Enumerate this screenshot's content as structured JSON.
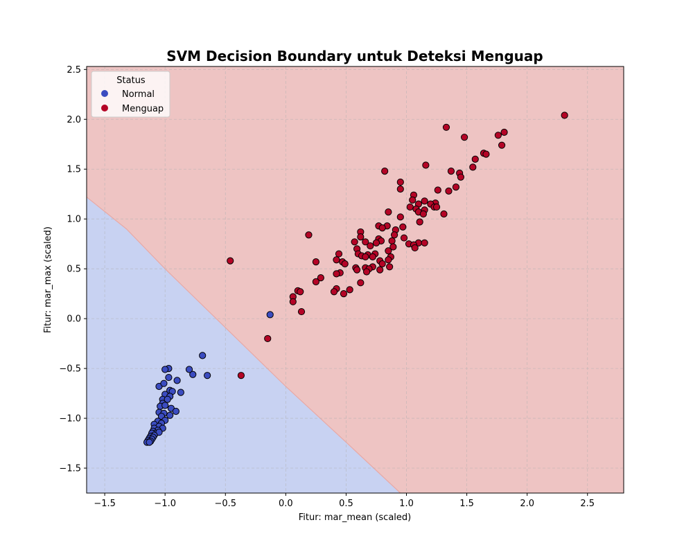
{
  "chart_data": {
    "type": "scatter",
    "title": "SVM Decision Boundary untuk Deteksi Menguap",
    "xlabel": "Fitur: mar_mean (scaled)",
    "ylabel": "Fitur: mar_max (scaled)",
    "xlim": [
      -1.65,
      2.8
    ],
    "ylim": [
      -1.75,
      2.53
    ],
    "xticks": [
      -1.5,
      -1.0,
      -0.5,
      0.0,
      0.5,
      1.0,
      1.5,
      2.0,
      2.5
    ],
    "yticks": [
      -1.5,
      -1.0,
      -0.5,
      0.0,
      0.5,
      1.0,
      1.5,
      2.0,
      2.5
    ],
    "xtick_labels": [
      "−1.5",
      "−1.0",
      "−0.5",
      "0.0",
      "0.5",
      "1.0",
      "1.5",
      "2.0",
      "2.5"
    ],
    "ytick_labels": [
      "−1.5",
      "−1.0",
      "−0.5",
      "0.0",
      "0.5",
      "1.0",
      "1.5",
      "2.0",
      "2.5"
    ],
    "grid": true,
    "legend": {
      "title": "Status",
      "position": "upper-left"
    },
    "decision_boundary": {
      "points": [
        [
          -1.65,
          1.22
        ],
        [
          -1.32,
          0.9
        ],
        [
          -1.0,
          0.5
        ],
        [
          -0.5,
          -0.09
        ],
        [
          0.0,
          -0.68
        ],
        [
          0.5,
          -1.24
        ],
        [
          0.95,
          -1.75
        ]
      ],
      "region_colors": {
        "normal": "#c8d2f2",
        "menguap": "#eec4c3"
      }
    },
    "series": [
      {
        "name": "Normal",
        "color": "#3b4cc0",
        "points": [
          [
            -0.13,
            0.04
          ],
          [
            -0.69,
            -0.37
          ],
          [
            -0.65,
            -0.57
          ],
          [
            -0.77,
            -0.56
          ],
          [
            -0.8,
            -0.51
          ],
          [
            -0.97,
            -0.5
          ],
          [
            -1.0,
            -0.51
          ],
          [
            -0.97,
            -0.59
          ],
          [
            -0.9,
            -0.62
          ],
          [
            -1.05,
            -0.68
          ],
          [
            -1.01,
            -0.65
          ],
          [
            -0.96,
            -0.72
          ],
          [
            -0.94,
            -0.73
          ],
          [
            -0.87,
            -0.74
          ],
          [
            -1.0,
            -0.76
          ],
          [
            -0.96,
            -0.78
          ],
          [
            -1.02,
            -0.81
          ],
          [
            -0.98,
            -0.81
          ],
          [
            -1.02,
            -0.85
          ],
          [
            -1.04,
            -0.88
          ],
          [
            -1.0,
            -0.87
          ],
          [
            -0.95,
            -0.9
          ],
          [
            -0.91,
            -0.93
          ],
          [
            -1.05,
            -0.94
          ],
          [
            -1.01,
            -0.95
          ],
          [
            -0.96,
            -0.97
          ],
          [
            -1.03,
            -0.98
          ],
          [
            -1.0,
            -1.02
          ],
          [
            -1.06,
            -1.03
          ],
          [
            -1.03,
            -1.05
          ],
          [
            -1.09,
            -1.06
          ],
          [
            -1.05,
            -1.08
          ],
          [
            -1.02,
            -1.1
          ],
          [
            -1.09,
            -1.1
          ],
          [
            -1.06,
            -1.12
          ],
          [
            -1.1,
            -1.13
          ],
          [
            -1.08,
            -1.15
          ],
          [
            -1.11,
            -1.15
          ],
          [
            -1.05,
            -1.14
          ],
          [
            -1.09,
            -1.17
          ],
          [
            -1.12,
            -1.18
          ],
          [
            -1.1,
            -1.19
          ],
          [
            -1.13,
            -1.2
          ],
          [
            -1.11,
            -1.21
          ],
          [
            -1.14,
            -1.22
          ],
          [
            -1.12,
            -1.23
          ],
          [
            -1.15,
            -1.24
          ],
          [
            -1.13,
            -1.24
          ]
        ]
      },
      {
        "name": "Menguap",
        "color": "#b40426",
        "points": [
          [
            2.31,
            2.04
          ],
          [
            1.33,
            1.92
          ],
          [
            1.81,
            1.87
          ],
          [
            1.76,
            1.84
          ],
          [
            1.48,
            1.82
          ],
          [
            1.79,
            1.74
          ],
          [
            1.64,
            1.66
          ],
          [
            1.66,
            1.65
          ],
          [
            1.57,
            1.6
          ],
          [
            1.16,
            1.54
          ],
          [
            1.55,
            1.52
          ],
          [
            0.82,
            1.48
          ],
          [
            1.37,
            1.48
          ],
          [
            1.44,
            1.46
          ],
          [
            1.45,
            1.42
          ],
          [
            0.95,
            1.37
          ],
          [
            1.41,
            1.32
          ],
          [
            0.95,
            1.3
          ],
          [
            1.26,
            1.29
          ],
          [
            1.35,
            1.28
          ],
          [
            1.06,
            1.24
          ],
          [
            1.05,
            1.19
          ],
          [
            1.15,
            1.18
          ],
          [
            1.24,
            1.16
          ],
          [
            1.1,
            1.15
          ],
          [
            1.2,
            1.15
          ],
          [
            1.23,
            1.12
          ],
          [
            1.25,
            1.12
          ],
          [
            1.03,
            1.12
          ],
          [
            1.08,
            1.1
          ],
          [
            1.15,
            1.09
          ],
          [
            1.1,
            1.07
          ],
          [
            0.85,
            1.07
          ],
          [
            1.14,
            1.05
          ],
          [
            1.31,
            1.05
          ],
          [
            0.95,
            1.02
          ],
          [
            1.11,
            0.97
          ],
          [
            0.77,
            0.93
          ],
          [
            0.84,
            0.93
          ],
          [
            0.8,
            0.91
          ],
          [
            0.97,
            0.92
          ],
          [
            0.91,
            0.89
          ],
          [
            0.62,
            0.87
          ],
          [
            0.19,
            0.84
          ],
          [
            0.9,
            0.84
          ],
          [
            0.62,
            0.82
          ],
          [
            0.77,
            0.8
          ],
          [
            0.98,
            0.81
          ],
          [
            0.88,
            0.78
          ],
          [
            0.79,
            0.78
          ],
          [
            0.57,
            0.77
          ],
          [
            0.66,
            0.77
          ],
          [
            0.75,
            0.76
          ],
          [
            1.1,
            0.76
          ],
          [
            1.15,
            0.76
          ],
          [
            1.02,
            0.75
          ],
          [
            1.06,
            0.74
          ],
          [
            0.7,
            0.73
          ],
          [
            0.89,
            0.72
          ],
          [
            1.07,
            0.71
          ],
          [
            0.59,
            0.7
          ],
          [
            0.85,
            0.68
          ],
          [
            0.6,
            0.65
          ],
          [
            0.74,
            0.65
          ],
          [
            0.44,
            0.65
          ],
          [
            0.68,
            0.64
          ],
          [
            0.63,
            0.63
          ],
          [
            0.66,
            0.62
          ],
          [
            0.72,
            0.62
          ],
          [
            0.87,
            0.62
          ],
          [
            0.85,
            0.59
          ],
          [
            0.42,
            0.59
          ],
          [
            -0.46,
            0.58
          ],
          [
            0.47,
            0.57
          ],
          [
            0.78,
            0.58
          ],
          [
            0.25,
            0.57
          ],
          [
            0.49,
            0.55
          ],
          [
            0.8,
            0.55
          ],
          [
            0.72,
            0.52
          ],
          [
            0.86,
            0.52
          ],
          [
            0.58,
            0.51
          ],
          [
            0.66,
            0.51
          ],
          [
            0.69,
            0.5
          ],
          [
            0.78,
            0.49
          ],
          [
            0.59,
            0.49
          ],
          [
            0.67,
            0.47
          ],
          [
            0.45,
            0.46
          ],
          [
            0.42,
            0.45
          ],
          [
            0.29,
            0.41
          ],
          [
            0.25,
            0.37
          ],
          [
            0.62,
            0.36
          ],
          [
            0.42,
            0.3
          ],
          [
            0.53,
            0.29
          ],
          [
            0.1,
            0.28
          ],
          [
            0.12,
            0.27
          ],
          [
            0.4,
            0.27
          ],
          [
            0.48,
            0.25
          ],
          [
            0.06,
            0.22
          ],
          [
            0.06,
            0.17
          ],
          [
            0.13,
            0.07
          ],
          [
            -0.15,
            -0.2
          ],
          [
            -0.37,
            -0.57
          ]
        ]
      }
    ]
  }
}
